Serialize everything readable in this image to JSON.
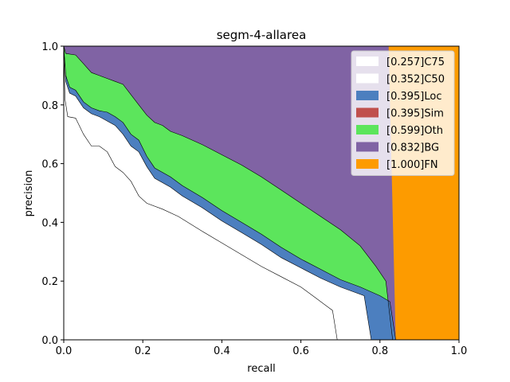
{
  "chart_data": {
    "type": "area",
    "title": "segm-4-allarea",
    "xlabel": "recall",
    "ylabel": "precision",
    "xlim": [
      0,
      1
    ],
    "ylim": [
      0,
      1
    ],
    "x_ticks": [
      "0.0",
      "0.2",
      "0.4",
      "0.6",
      "0.8",
      "1.0"
    ],
    "y_ticks": [
      "0.0",
      "0.2",
      "0.4",
      "0.6",
      "0.8",
      "1.0"
    ],
    "legend_position": "top-right",
    "series": [
      {
        "name": "[0.257]C75",
        "color": "#ffffff",
        "points": [
          [
            0,
            1.0
          ],
          [
            0.003,
            0.82
          ],
          [
            0.01,
            0.76
          ],
          [
            0.03,
            0.755
          ],
          [
            0.05,
            0.7
          ],
          [
            0.07,
            0.66
          ],
          [
            0.09,
            0.66
          ],
          [
            0.11,
            0.64
          ],
          [
            0.13,
            0.59
          ],
          [
            0.15,
            0.57
          ],
          [
            0.17,
            0.54
          ],
          [
            0.19,
            0.49
          ],
          [
            0.21,
            0.465
          ],
          [
            0.25,
            0.445
          ],
          [
            0.29,
            0.42
          ],
          [
            0.35,
            0.37
          ],
          [
            0.4,
            0.33
          ],
          [
            0.45,
            0.29
          ],
          [
            0.5,
            0.25
          ],
          [
            0.55,
            0.215
          ],
          [
            0.6,
            0.18
          ],
          [
            0.64,
            0.14
          ],
          [
            0.67,
            0.11
          ],
          [
            0.68,
            0.1
          ],
          [
            0.692,
            0.0
          ]
        ]
      },
      {
        "name": "[0.352]C50",
        "color": "#ffffff",
        "points": [
          [
            0,
            1.0
          ],
          [
            0.005,
            0.88
          ],
          [
            0.015,
            0.84
          ],
          [
            0.03,
            0.83
          ],
          [
            0.05,
            0.79
          ],
          [
            0.07,
            0.77
          ],
          [
            0.09,
            0.76
          ],
          [
            0.11,
            0.745
          ],
          [
            0.13,
            0.73
          ],
          [
            0.15,
            0.7
          ],
          [
            0.17,
            0.66
          ],
          [
            0.19,
            0.64
          ],
          [
            0.21,
            0.59
          ],
          [
            0.23,
            0.55
          ],
          [
            0.27,
            0.52
          ],
          [
            0.3,
            0.49
          ],
          [
            0.35,
            0.45
          ],
          [
            0.4,
            0.405
          ],
          [
            0.45,
            0.365
          ],
          [
            0.5,
            0.325
          ],
          [
            0.55,
            0.28
          ],
          [
            0.6,
            0.245
          ],
          [
            0.65,
            0.21
          ],
          [
            0.7,
            0.18
          ],
          [
            0.73,
            0.165
          ],
          [
            0.76,
            0.15
          ],
          [
            0.778,
            0.0
          ]
        ]
      },
      {
        "name": "[0.395]Loc",
        "color": "#4c7fbf",
        "points": [
          [
            0,
            1.0
          ],
          [
            0.005,
            0.9
          ],
          [
            0.015,
            0.86
          ],
          [
            0.03,
            0.85
          ],
          [
            0.05,
            0.81
          ],
          [
            0.07,
            0.79
          ],
          [
            0.09,
            0.78
          ],
          [
            0.11,
            0.775
          ],
          [
            0.13,
            0.76
          ],
          [
            0.15,
            0.74
          ],
          [
            0.17,
            0.7
          ],
          [
            0.19,
            0.68
          ],
          [
            0.21,
            0.625
          ],
          [
            0.23,
            0.585
          ],
          [
            0.27,
            0.555
          ],
          [
            0.3,
            0.525
          ],
          [
            0.35,
            0.485
          ],
          [
            0.4,
            0.44
          ],
          [
            0.45,
            0.4
          ],
          [
            0.5,
            0.36
          ],
          [
            0.55,
            0.315
          ],
          [
            0.6,
            0.275
          ],
          [
            0.65,
            0.24
          ],
          [
            0.7,
            0.205
          ],
          [
            0.75,
            0.18
          ],
          [
            0.8,
            0.15
          ],
          [
            0.825,
            0.13
          ],
          [
            0.84,
            0.0
          ]
        ]
      },
      {
        "name": "[0.395]Sim",
        "color": "#c0504d",
        "points": [
          [
            0,
            1.0
          ],
          [
            0.005,
            0.9
          ],
          [
            0.015,
            0.86
          ],
          [
            0.03,
            0.85
          ],
          [
            0.05,
            0.81
          ],
          [
            0.07,
            0.79
          ],
          [
            0.09,
            0.78
          ],
          [
            0.11,
            0.775
          ],
          [
            0.13,
            0.76
          ],
          [
            0.15,
            0.74
          ],
          [
            0.17,
            0.7
          ],
          [
            0.19,
            0.68
          ],
          [
            0.21,
            0.625
          ],
          [
            0.23,
            0.585
          ],
          [
            0.27,
            0.555
          ],
          [
            0.3,
            0.525
          ],
          [
            0.35,
            0.485
          ],
          [
            0.4,
            0.44
          ],
          [
            0.45,
            0.4
          ],
          [
            0.5,
            0.36
          ],
          [
            0.55,
            0.315
          ],
          [
            0.6,
            0.275
          ],
          [
            0.65,
            0.24
          ],
          [
            0.7,
            0.205
          ],
          [
            0.75,
            0.18
          ],
          [
            0.8,
            0.15
          ],
          [
            0.825,
            0.13
          ],
          [
            0.84,
            0.0
          ]
        ]
      },
      {
        "name": "[0.599]Oth",
        "color": "#5ce55c",
        "points": [
          [
            0,
            1.0
          ],
          [
            0.005,
            0.975
          ],
          [
            0.03,
            0.97
          ],
          [
            0.05,
            0.94
          ],
          [
            0.07,
            0.91
          ],
          [
            0.09,
            0.9
          ],
          [
            0.11,
            0.89
          ],
          [
            0.13,
            0.88
          ],
          [
            0.15,
            0.87
          ],
          [
            0.17,
            0.835
          ],
          [
            0.19,
            0.8
          ],
          [
            0.21,
            0.765
          ],
          [
            0.23,
            0.74
          ],
          [
            0.25,
            0.73
          ],
          [
            0.27,
            0.71
          ],
          [
            0.3,
            0.695
          ],
          [
            0.35,
            0.665
          ],
          [
            0.4,
            0.63
          ],
          [
            0.45,
            0.595
          ],
          [
            0.5,
            0.555
          ],
          [
            0.55,
            0.51
          ],
          [
            0.6,
            0.465
          ],
          [
            0.65,
            0.42
          ],
          [
            0.7,
            0.375
          ],
          [
            0.75,
            0.32
          ],
          [
            0.79,
            0.25
          ],
          [
            0.815,
            0.2
          ],
          [
            0.832,
            0.0
          ]
        ]
      },
      {
        "name": "[0.832]BG",
        "color": "#8063a4",
        "points": [
          [
            0,
            1.0
          ],
          [
            0.05,
            1.0
          ],
          [
            0.1,
            1.0
          ],
          [
            0.15,
            1.0
          ],
          [
            0.2,
            1.0
          ],
          [
            0.3,
            1.0
          ],
          [
            0.4,
            1.0
          ],
          [
            0.5,
            1.0
          ],
          [
            0.6,
            1.0
          ],
          [
            0.7,
            1.0
          ],
          [
            0.8,
            1.0
          ],
          [
            0.822,
            1.0
          ],
          [
            0.84,
            0.0
          ]
        ]
      },
      {
        "name": "[1.000]FN",
        "color": "#fd9b00",
        "points": [
          [
            0,
            1.0
          ],
          [
            0.5,
            1.0
          ],
          [
            1.0,
            1.0
          ],
          [
            1.0,
            0.0
          ]
        ]
      }
    ],
    "boundaries": {
      "c75": [
        [
          0,
          1.0
        ],
        [
          0.003,
          0.82
        ],
        [
          0.01,
          0.76
        ],
        [
          0.03,
          0.755
        ],
        [
          0.05,
          0.7
        ],
        [
          0.07,
          0.66
        ],
        [
          0.09,
          0.66
        ],
        [
          0.11,
          0.64
        ],
        [
          0.13,
          0.59
        ],
        [
          0.15,
          0.57
        ],
        [
          0.17,
          0.54
        ],
        [
          0.19,
          0.49
        ],
        [
          0.21,
          0.465
        ],
        [
          0.25,
          0.445
        ],
        [
          0.29,
          0.42
        ],
        [
          0.35,
          0.37
        ],
        [
          0.4,
          0.33
        ],
        [
          0.45,
          0.29
        ],
        [
          0.5,
          0.25
        ],
        [
          0.55,
          0.215
        ],
        [
          0.6,
          0.18
        ],
        [
          0.64,
          0.14
        ],
        [
          0.67,
          0.11
        ],
        [
          0.68,
          0.1
        ],
        [
          0.692,
          0.0
        ]
      ],
      "c50": [
        [
          0,
          1.0
        ],
        [
          0.005,
          0.88
        ],
        [
          0.015,
          0.84
        ],
        [
          0.03,
          0.83
        ],
        [
          0.05,
          0.79
        ],
        [
          0.07,
          0.77
        ],
        [
          0.09,
          0.76
        ],
        [
          0.11,
          0.745
        ],
        [
          0.13,
          0.73
        ],
        [
          0.15,
          0.7
        ],
        [
          0.17,
          0.66
        ],
        [
          0.19,
          0.64
        ],
        [
          0.21,
          0.59
        ],
        [
          0.23,
          0.55
        ],
        [
          0.27,
          0.52
        ],
        [
          0.3,
          0.49
        ],
        [
          0.35,
          0.45
        ],
        [
          0.4,
          0.405
        ],
        [
          0.45,
          0.365
        ],
        [
          0.5,
          0.325
        ],
        [
          0.55,
          0.28
        ],
        [
          0.6,
          0.245
        ],
        [
          0.65,
          0.21
        ],
        [
          0.7,
          0.18
        ],
        [
          0.73,
          0.165
        ],
        [
          0.76,
          0.15
        ],
        [
          0.778,
          0.0
        ]
      ],
      "loc": [
        [
          0,
          1.0
        ],
        [
          0.005,
          0.9
        ],
        [
          0.015,
          0.86
        ],
        [
          0.03,
          0.85
        ],
        [
          0.05,
          0.81
        ],
        [
          0.07,
          0.79
        ],
        [
          0.09,
          0.78
        ],
        [
          0.11,
          0.775
        ],
        [
          0.13,
          0.76
        ],
        [
          0.15,
          0.74
        ],
        [
          0.17,
          0.7
        ],
        [
          0.19,
          0.68
        ],
        [
          0.21,
          0.625
        ],
        [
          0.23,
          0.585
        ],
        [
          0.27,
          0.555
        ],
        [
          0.3,
          0.525
        ],
        [
          0.35,
          0.485
        ],
        [
          0.4,
          0.44
        ],
        [
          0.45,
          0.4
        ],
        [
          0.5,
          0.36
        ],
        [
          0.55,
          0.315
        ],
        [
          0.6,
          0.275
        ],
        [
          0.65,
          0.24
        ],
        [
          0.7,
          0.205
        ],
        [
          0.75,
          0.18
        ],
        [
          0.8,
          0.15
        ],
        [
          0.825,
          0.13
        ],
        [
          0.84,
          0.0
        ]
      ],
      "oth": [
        [
          0,
          1.0
        ],
        [
          0.005,
          0.975
        ],
        [
          0.03,
          0.97
        ],
        [
          0.05,
          0.94
        ],
        [
          0.07,
          0.91
        ],
        [
          0.09,
          0.9
        ],
        [
          0.11,
          0.89
        ],
        [
          0.13,
          0.88
        ],
        [
          0.15,
          0.87
        ],
        [
          0.17,
          0.835
        ],
        [
          0.19,
          0.8
        ],
        [
          0.21,
          0.765
        ],
        [
          0.23,
          0.74
        ],
        [
          0.25,
          0.73
        ],
        [
          0.27,
          0.71
        ],
        [
          0.3,
          0.695
        ],
        [
          0.35,
          0.665
        ],
        [
          0.4,
          0.63
        ],
        [
          0.45,
          0.595
        ],
        [
          0.5,
          0.555
        ],
        [
          0.55,
          0.51
        ],
        [
          0.6,
          0.465
        ],
        [
          0.65,
          0.42
        ],
        [
          0.7,
          0.375
        ],
        [
          0.75,
          0.32
        ],
        [
          0.79,
          0.25
        ],
        [
          0.815,
          0.2
        ],
        [
          0.832,
          0.0
        ]
      ],
      "bg": [
        [
          0,
          1.0
        ],
        [
          0.822,
          1.0
        ],
        [
          0.84,
          0.0
        ]
      ]
    }
  }
}
